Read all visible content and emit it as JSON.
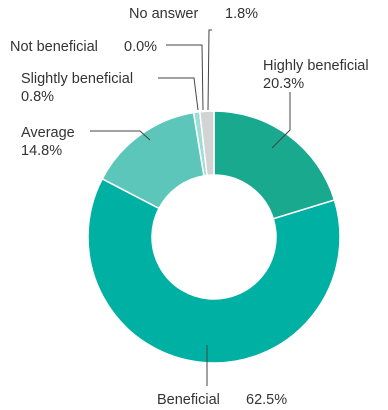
{
  "chart_data": {
    "type": "pie",
    "title": "",
    "slices": [
      {
        "label": "Highly beneficial",
        "value": 20.3,
        "value_label": "20.3%",
        "color": "#18a98f"
      },
      {
        "label": "Beneficial",
        "value": 62.5,
        "value_label": "62.5%",
        "color": "#00b0a2"
      },
      {
        "label": "Average",
        "value": 14.8,
        "value_label": "14.8%",
        "color": "#5bc6b9"
      },
      {
        "label": "Slightly beneficial",
        "value": 0.8,
        "value_label": "0.8%",
        "color": "#9dded4"
      },
      {
        "label": "Not beneficial",
        "value": 0.0,
        "value_label": "0.0%",
        "color": "#c8ece6"
      },
      {
        "label": "No answer",
        "value": 1.8,
        "value_label": "1.8%",
        "color": "#d3d3d3"
      }
    ]
  }
}
